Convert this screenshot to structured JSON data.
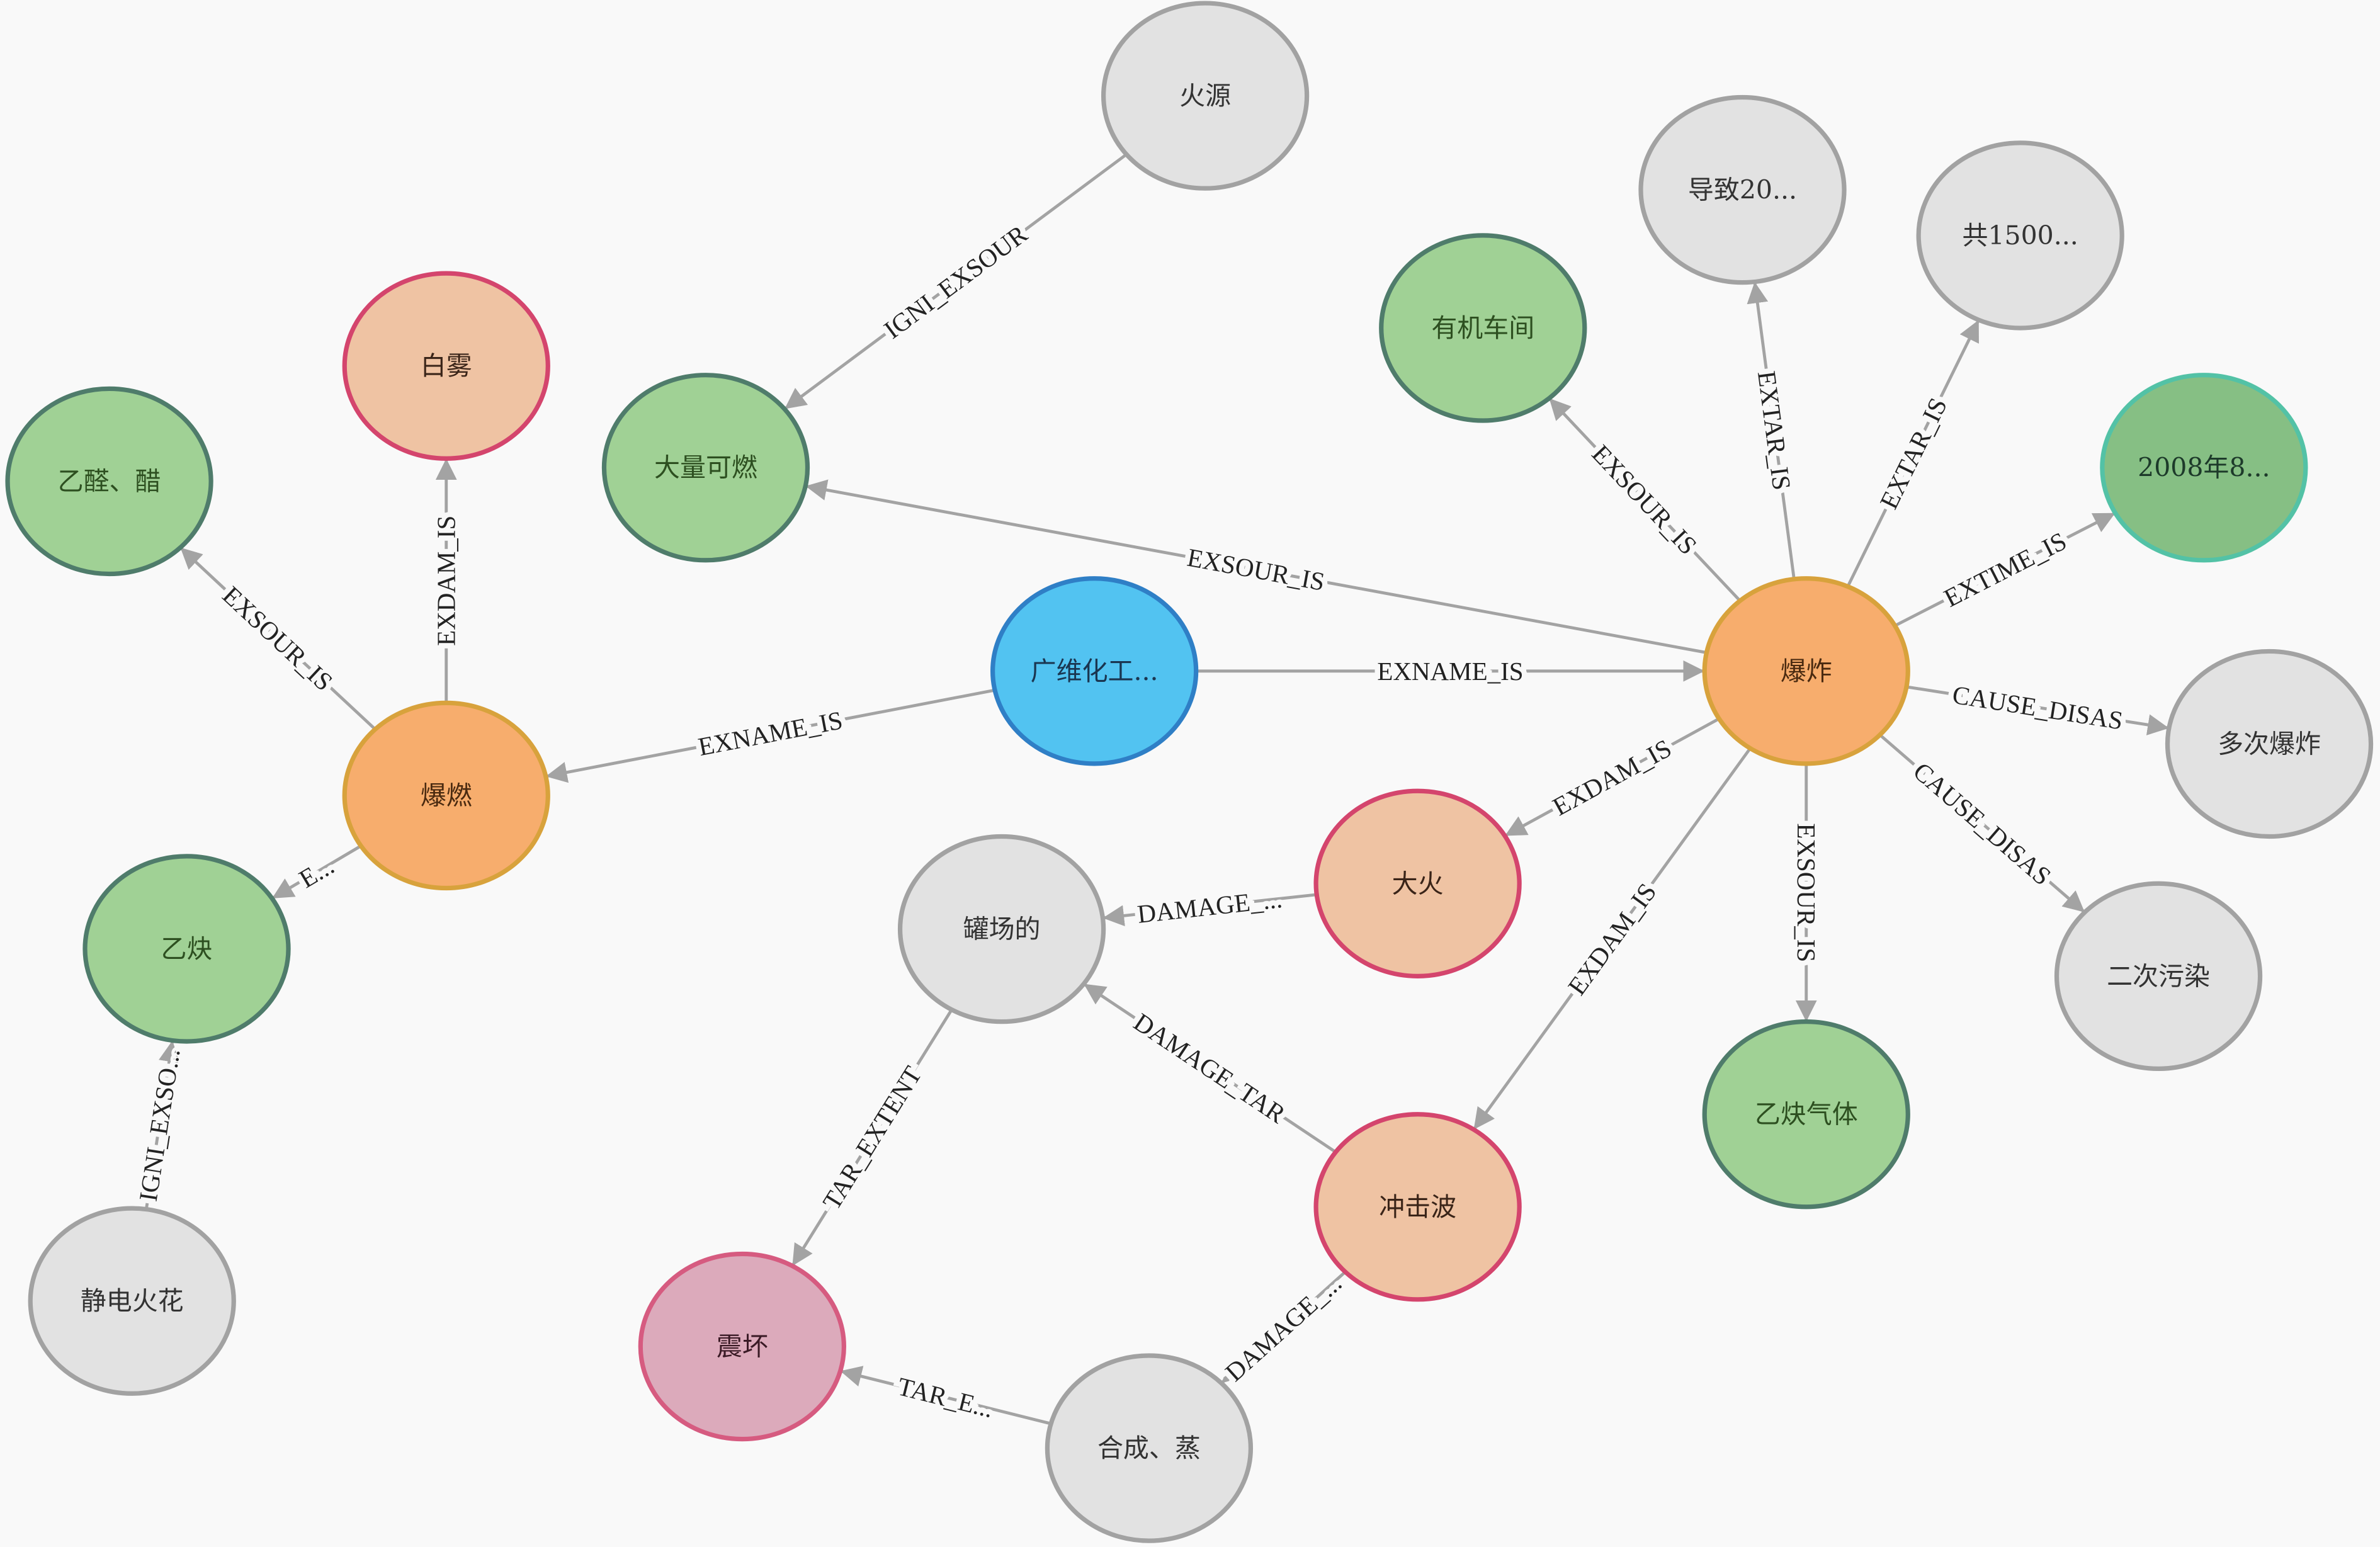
{
  "palette": {
    "background": "#f9f9f9",
    "edge": "#a3a3a3",
    "gray": {
      "fill": "#e2e2e2",
      "stroke": "#a2a2a2",
      "text": "#333333"
    },
    "green": {
      "fill": "#a0d195",
      "stroke": "#4f7c6b",
      "text": "#2d4f20"
    },
    "darkgreen": {
      "fill": "#86bf84",
      "stroke": "#53c2a6",
      "text": "#1d3a2a"
    },
    "blue": {
      "fill": "#52c3f1",
      "stroke": "#2f7fc6",
      "text": "#1a3550"
    },
    "orange": {
      "fill": "#f7ad6d",
      "stroke": "#d8a23c",
      "text": "#4a2a10"
    },
    "peach": {
      "fill": "#efc3a3",
      "stroke": "#d4456d",
      "text": "#3a2418"
    },
    "pink": {
      "fill": "#dcaabb",
      "stroke": "#d65b80",
      "text": "#3a1a25"
    }
  },
  "nodes": [
    {
      "id": "huoyuan",
      "label": "火源",
      "color": "gray"
    },
    {
      "id": "daozhi",
      "label": "导致20...",
      "color": "gray"
    },
    {
      "id": "gong1500",
      "label": "共1500...",
      "color": "gray"
    },
    {
      "id": "youji",
      "label": "有机车间",
      "color": "green"
    },
    {
      "id": "baiwu",
      "label": "白雾",
      "color": "peach"
    },
    {
      "id": "yiquan_cu",
      "label": "乙醛、醋",
      "color": "green"
    },
    {
      "id": "daliang",
      "label": "大量可燃",
      "color": "green"
    },
    {
      "id": "time2008",
      "label": "2008年8...",
      "color": "darkgreen"
    },
    {
      "id": "guangwei",
      "label": "广维化工...",
      "color": "blue"
    },
    {
      "id": "baozha",
      "label": "爆炸",
      "color": "orange"
    },
    {
      "id": "baoran",
      "label": "爆燃",
      "color": "orange"
    },
    {
      "id": "duoci",
      "label": "多次爆炸",
      "color": "gray"
    },
    {
      "id": "dahuo",
      "label": "大火",
      "color": "peach"
    },
    {
      "id": "guanchang",
      "label": "罐场的",
      "color": "gray"
    },
    {
      "id": "yique",
      "label": "乙炔",
      "color": "green"
    },
    {
      "id": "erci",
      "label": "二次污染",
      "color": "gray"
    },
    {
      "id": "yiquegas",
      "label": "乙炔气体",
      "color": "green"
    },
    {
      "id": "chongji",
      "label": "冲击波",
      "color": "peach"
    },
    {
      "id": "jingdian",
      "label": "静电火花",
      "color": "gray"
    },
    {
      "id": "zhenhuai",
      "label": "震坏",
      "color": "pink"
    },
    {
      "id": "hecheng",
      "label": "合成、蒸",
      "color": "gray"
    }
  ],
  "edges": [
    {
      "from": "huoyuan",
      "to": "daliang",
      "label": "IGNI_EXSOUR"
    },
    {
      "from": "baozha",
      "to": "daliang",
      "label": "EXSOUR_IS"
    },
    {
      "from": "baozha",
      "to": "youji",
      "label": "EXSOUR_IS"
    },
    {
      "from": "baozha",
      "to": "daozhi",
      "label": "EXTAR_IS"
    },
    {
      "from": "baozha",
      "to": "gong1500",
      "label": "EXTAR_IS"
    },
    {
      "from": "baozha",
      "to": "time2008",
      "label": "EXTIME_IS"
    },
    {
      "from": "baozha",
      "to": "duoci",
      "label": "CAUSE_DISAS"
    },
    {
      "from": "baozha",
      "to": "erci",
      "label": "CAUSE_DISAS"
    },
    {
      "from": "baozha",
      "to": "yiquegas",
      "label": "EXSOUR_IS"
    },
    {
      "from": "baozha",
      "to": "chongji",
      "label": "EXDAM_IS"
    },
    {
      "from": "baozha",
      "to": "dahuo",
      "label": "EXDAM_IS"
    },
    {
      "from": "guangwei",
      "to": "baozha",
      "label": "EXNAME_IS"
    },
    {
      "from": "guangwei",
      "to": "baoran",
      "label": "EXNAME_IS"
    },
    {
      "from": "baoran",
      "to": "baiwu",
      "label": "EXDAM_IS"
    },
    {
      "from": "baoran",
      "to": "yiquan_cu",
      "label": "EXSOUR_IS"
    },
    {
      "from": "baoran",
      "to": "yique",
      "label": "E..."
    },
    {
      "from": "jingdian",
      "to": "yique",
      "label": "IGNI_EXSO..."
    },
    {
      "from": "dahuo",
      "to": "guanchang",
      "label": "DAMAGE_..."
    },
    {
      "from": "chongji",
      "to": "guanchang",
      "label": "DAMAGE_TAR"
    },
    {
      "from": "guanchang",
      "to": "zhenhuai",
      "label": "TAR_EXTENT"
    },
    {
      "from": "chongji",
      "to": "hecheng",
      "label": "DAMAGE_..."
    },
    {
      "from": "hecheng",
      "to": "zhenhuai",
      "label": "TAR_E..."
    }
  ]
}
